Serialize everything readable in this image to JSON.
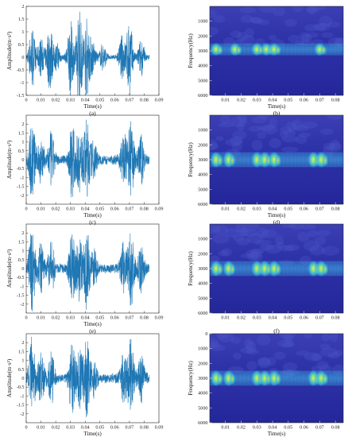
{
  "figure": {
    "colors": {
      "signal": "#1f77b4",
      "axis": "#222222",
      "spec_bg": "#2b2fa8",
      "spec_band": "#36b6e0",
      "spec_peak": "#dfe64a"
    }
  },
  "chart_data": [
    {
      "type": "line",
      "caption": "(a)",
      "xlabel": "Time(s)",
      "ylabel": "Amplitude(m·s²)",
      "xlim": [
        0,
        0.09
      ],
      "ylim": [
        -1.5,
        2
      ],
      "xticks": [
        "0",
        "0.01",
        "0.02",
        "0.03",
        "0.04",
        "0.05",
        "0.06",
        "0.07",
        "0.08",
        "0.09"
      ],
      "yticks": [
        "-1.5",
        "-1",
        "-0.5",
        "0",
        "0.5",
        "1",
        "1.5",
        "2"
      ],
      "series": [
        {
          "bursts": [
            {
              "t": 0.004,
              "amp": 1.2
            },
            {
              "t": 0.01,
              "amp": 0.7
            },
            {
              "t": 0.016,
              "amp": 1.3
            },
            {
              "t": 0.021,
              "amp": 0.5
            },
            {
              "t": 0.03,
              "amp": 1.4
            },
            {
              "t": 0.036,
              "amp": 1.9
            },
            {
              "t": 0.041,
              "amp": 1.5
            },
            {
              "t": 0.045,
              "amp": 0.6
            },
            {
              "t": 0.052,
              "amp": 0.5
            },
            {
              "t": 0.065,
              "amp": 0.8
            },
            {
              "t": 0.07,
              "amp": 1.5
            },
            {
              "t": 0.078,
              "amp": 0.7
            }
          ],
          "noise_floor": 0.1
        }
      ]
    },
    {
      "type": "heatmap",
      "caption": "(b)",
      "xlabel": "Time(s)",
      "ylabel": "Frequency(Hz)",
      "xlim": [
        0,
        0.085
      ],
      "ylim": [
        0,
        6000
      ],
      "y_inverted": true,
      "xticks": [
        "0.01",
        "0.02",
        "0.03",
        "0.04",
        "0.05",
        "0.06",
        "0.07",
        "0.08"
      ],
      "yticks": [
        "1000",
        "2000",
        "3000",
        "4000",
        "5000",
        "6000"
      ],
      "band_center_hz": 2900,
      "band_hz_range": [
        2500,
        3300
      ],
      "hotspots_s": [
        0.004,
        0.016,
        0.03,
        0.036,
        0.041,
        0.07
      ]
    },
    {
      "type": "line",
      "caption": "(c)",
      "xlabel": "Time(s)",
      "ylabel": "Amplitude(m·s²)",
      "xlim": [
        0,
        0.09
      ],
      "ylim": [
        -2.5,
        2.5
      ],
      "xticks": [
        "0",
        "0.01",
        "0.02",
        "0.03",
        "0.04",
        "0.05",
        "0.06",
        "0.07",
        "0.08",
        "0.09"
      ],
      "yticks": [
        "-2",
        "-1.5",
        "-1",
        "-0.5",
        "0",
        "0.5",
        "1",
        "1.5",
        "2"
      ],
      "series": [
        {
          "bursts": [
            {
              "t": 0.004,
              "amp": 2.2
            },
            {
              "t": 0.01,
              "amp": 1.2
            },
            {
              "t": 0.017,
              "amp": 1.4
            },
            {
              "t": 0.031,
              "amp": 1.9
            },
            {
              "t": 0.036,
              "amp": 1.6
            },
            {
              "t": 0.041,
              "amp": 2.1
            },
            {
              "t": 0.046,
              "amp": 0.9
            },
            {
              "t": 0.066,
              "amp": 1.4
            },
            {
              "t": 0.071,
              "amp": 2.0
            },
            {
              "t": 0.078,
              "amp": 1.2
            }
          ],
          "noise_floor": 0.3
        }
      ]
    },
    {
      "type": "heatmap",
      "caption": "(d)",
      "xlabel": "Time(s)",
      "ylabel": "Frequency(Hz)",
      "xlim": [
        0,
        0.085
      ],
      "ylim": [
        0,
        6000
      ],
      "y_inverted": true,
      "xticks": [
        "0.01",
        "0.02",
        "0.03",
        "0.04",
        "0.05",
        "0.06",
        "0.07",
        "0.08"
      ],
      "yticks": [
        "1000",
        "2000",
        "3000",
        "4000",
        "5000",
        "6000"
      ],
      "band_center_hz": 3000,
      "band_hz_range": [
        2500,
        3500
      ],
      "hotspots_s": [
        0.004,
        0.012,
        0.03,
        0.035,
        0.041,
        0.066,
        0.071
      ]
    },
    {
      "type": "line",
      "caption": "(e)",
      "xlabel": "Time(s)",
      "ylabel": "Amplitude(m·s²)",
      "xlim": [
        0,
        0.09
      ],
      "ylim": [
        -2.5,
        2.5
      ],
      "xticks": [
        "0",
        "0.01",
        "0.02",
        "0.03",
        "0.04",
        "0.05",
        "0.06",
        "0.07",
        "0.08",
        "0.09"
      ],
      "yticks": [
        "-2",
        "-1.5",
        "-1",
        "-0.5",
        "0",
        "0.5",
        "1",
        "1.5",
        "2"
      ],
      "series": [
        {
          "bursts": [
            {
              "t": 0.004,
              "amp": 2.2
            },
            {
              "t": 0.01,
              "amp": 1.3
            },
            {
              "t": 0.017,
              "amp": 1.4
            },
            {
              "t": 0.031,
              "amp": 1.9
            },
            {
              "t": 0.036,
              "amp": 1.6
            },
            {
              "t": 0.041,
              "amp": 2.1
            },
            {
              "t": 0.046,
              "amp": 0.9
            },
            {
              "t": 0.066,
              "amp": 1.4
            },
            {
              "t": 0.071,
              "amp": 2.0
            },
            {
              "t": 0.078,
              "amp": 1.2
            }
          ],
          "noise_floor": 0.3
        }
      ]
    },
    {
      "type": "heatmap",
      "caption": "(f)",
      "xlabel": "",
      "ylabel": "Frequency(Hz)",
      "xlim": [
        0,
        0.085
      ],
      "ylim": [
        0,
        6000
      ],
      "y_inverted": true,
      "xticks": [
        "0.01",
        "0.02",
        "0.03",
        "0.04",
        "0.05",
        "0.06",
        "0.07",
        "0.08"
      ],
      "yticks": [
        "1000",
        "2000",
        "3000",
        "4000",
        "5000",
        "6000"
      ],
      "band_center_hz": 3000,
      "band_hz_range": [
        2500,
        3500
      ],
      "hotspots_s": [
        0.004,
        0.012,
        0.03,
        0.035,
        0.041,
        0.066,
        0.071
      ]
    },
    {
      "type": "line",
      "caption": "(g)",
      "xlabel": "Time(s)",
      "ylabel": "Amplitude(m·s²)",
      "xlim": [
        0,
        0.09
      ],
      "ylim": [
        -2.5,
        2.5
      ],
      "xticks": [
        "0",
        "0.01",
        "0.02",
        "0.03",
        "0.04",
        "0.05",
        "0.06",
        "0.07",
        "0.08",
        "0.09"
      ],
      "yticks": [
        "-2",
        "-1.5",
        "-1",
        "-0.5",
        "0",
        "0.5",
        "1",
        "1.5",
        "2"
      ],
      "series": [
        {
          "bursts": [
            {
              "t": 0.004,
              "amp": 2.2
            },
            {
              "t": 0.01,
              "amp": 1.3
            },
            {
              "t": 0.017,
              "amp": 1.4
            },
            {
              "t": 0.031,
              "amp": 1.9
            },
            {
              "t": 0.036,
              "amp": 1.6
            },
            {
              "t": 0.041,
              "amp": 2.1
            },
            {
              "t": 0.046,
              "amp": 0.9
            },
            {
              "t": 0.066,
              "amp": 1.4
            },
            {
              "t": 0.071,
              "amp": 2.0
            },
            {
              "t": 0.078,
              "amp": 1.2
            }
          ],
          "noise_floor": 0.3
        }
      ]
    },
    {
      "type": "heatmap",
      "caption": "(h)",
      "xlabel": "Time(s)",
      "ylabel": "Frequency(Hz)",
      "xlim": [
        0,
        0.085
      ],
      "ylim": [
        0,
        6000
      ],
      "y_inverted": true,
      "xticks": [
        "0.01",
        "0.02",
        "0.03",
        "0.04",
        "0.05",
        "0.06",
        "0.07",
        "0.08"
      ],
      "yticks": [
        "0",
        "1000",
        "2000",
        "3000",
        "4000",
        "5000",
        "6000"
      ],
      "band_center_hz": 3000,
      "band_hz_range": [
        2500,
        3500
      ],
      "hotspots_s": [
        0.004,
        0.012,
        0.03,
        0.035,
        0.041,
        0.066,
        0.071
      ]
    }
  ]
}
